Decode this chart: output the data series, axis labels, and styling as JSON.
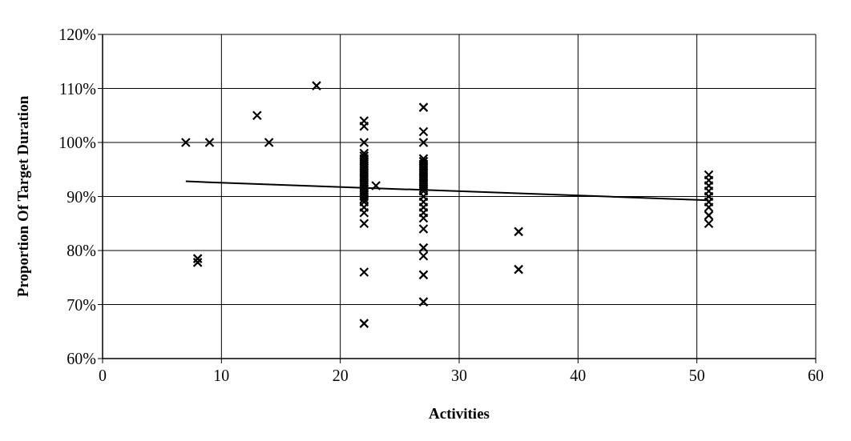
{
  "chart_data": {
    "type": "scatter",
    "xlabel": "Activities",
    "ylabel": "Proportion Of Target Duration",
    "xlim": [
      0,
      60
    ],
    "xticks": [
      0,
      10,
      20,
      30,
      40,
      50,
      60
    ],
    "ylim": [
      60,
      120
    ],
    "yticks": [
      {
        "value": 60,
        "label": "60%"
      },
      {
        "value": 70,
        "label": "70%"
      },
      {
        "value": 80,
        "label": "80%"
      },
      {
        "value": 90,
        "label": "90%"
      },
      {
        "value": 100,
        "label": "100%"
      },
      {
        "value": 110,
        "label": "110%"
      },
      {
        "value": 120,
        "label": "120%"
      }
    ],
    "grid": true,
    "marker": "cross",
    "series": [
      {
        "color": "#000000",
        "x": [
          7,
          8,
          8,
          9,
          13,
          14,
          18,
          22,
          22,
          22,
          22,
          22,
          22,
          22,
          22,
          22,
          22,
          22,
          22,
          22,
          22,
          22,
          22,
          22,
          22,
          22,
          22,
          22,
          22,
          22,
          22,
          22,
          22,
          22,
          23,
          27,
          27,
          27,
          27,
          27,
          27,
          27,
          27,
          27,
          27,
          27,
          27,
          27,
          27,
          27,
          27,
          27,
          27,
          27,
          27,
          27,
          27,
          27,
          27,
          27,
          27,
          35,
          35,
          51,
          51,
          51,
          51,
          51,
          51,
          51,
          51,
          51
        ],
        "values": [
          100,
          78.5,
          77.8,
          100,
          105,
          100,
          110.5,
          104,
          103,
          100,
          98,
          97.5,
          97,
          96.5,
          96,
          95.5,
          95,
          94.5,
          94,
          93.5,
          93,
          92.5,
          92,
          91.5,
          91,
          90.5,
          90,
          89.5,
          89,
          88,
          87,
          85,
          76,
          66.5,
          92,
          106.5,
          102,
          100,
          97,
          96.5,
          96,
          95.5,
          95,
          94.5,
          94,
          93.5,
          93,
          92.5,
          92,
          91.5,
          91,
          90,
          89,
          88,
          87,
          86,
          84,
          80.5,
          79,
          75.5,
          70.5,
          83.5,
          76.5,
          94,
          93,
          92,
          91,
          90,
          89,
          88,
          86.5,
          85
        ]
      },
      {
        "type": "line",
        "color": "#000000",
        "x": [
          7,
          51
        ],
        "values": [
          92.8,
          89.3
        ],
        "marker": "none"
      }
    ]
  }
}
